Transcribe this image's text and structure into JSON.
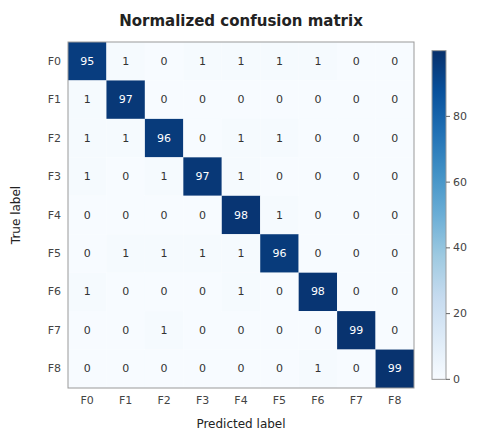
{
  "chart_data": {
    "type": "heatmap",
    "title": "Normalized confusion matrix",
    "x_label": "Predicted label",
    "y_label": "True label",
    "categories": [
      "F0",
      "F1",
      "F2",
      "F3",
      "F4",
      "F5",
      "F6",
      "F7",
      "F8"
    ],
    "values": [
      [
        95,
        1,
        0,
        1,
        1,
        1,
        1,
        0,
        0
      ],
      [
        1,
        97,
        0,
        0,
        0,
        0,
        0,
        0,
        0
      ],
      [
        1,
        1,
        96,
        0,
        1,
        1,
        0,
        0,
        0
      ],
      [
        1,
        0,
        1,
        97,
        1,
        0,
        0,
        0,
        0
      ],
      [
        0,
        0,
        0,
        0,
        98,
        1,
        0,
        0,
        0
      ],
      [
        0,
        1,
        1,
        1,
        1,
        96,
        0,
        0,
        0
      ],
      [
        1,
        0,
        0,
        0,
        1,
        0,
        98,
        0,
        0
      ],
      [
        0,
        0,
        1,
        0,
        0,
        0,
        0,
        99,
        0
      ],
      [
        0,
        0,
        0,
        0,
        0,
        0,
        1,
        0,
        99
      ]
    ],
    "color": "Blues",
    "data_labels": true,
    "colorbar_range": [
      0,
      100
    ],
    "colorbar_ticks": [
      0,
      20,
      40,
      60,
      80
    ]
  }
}
